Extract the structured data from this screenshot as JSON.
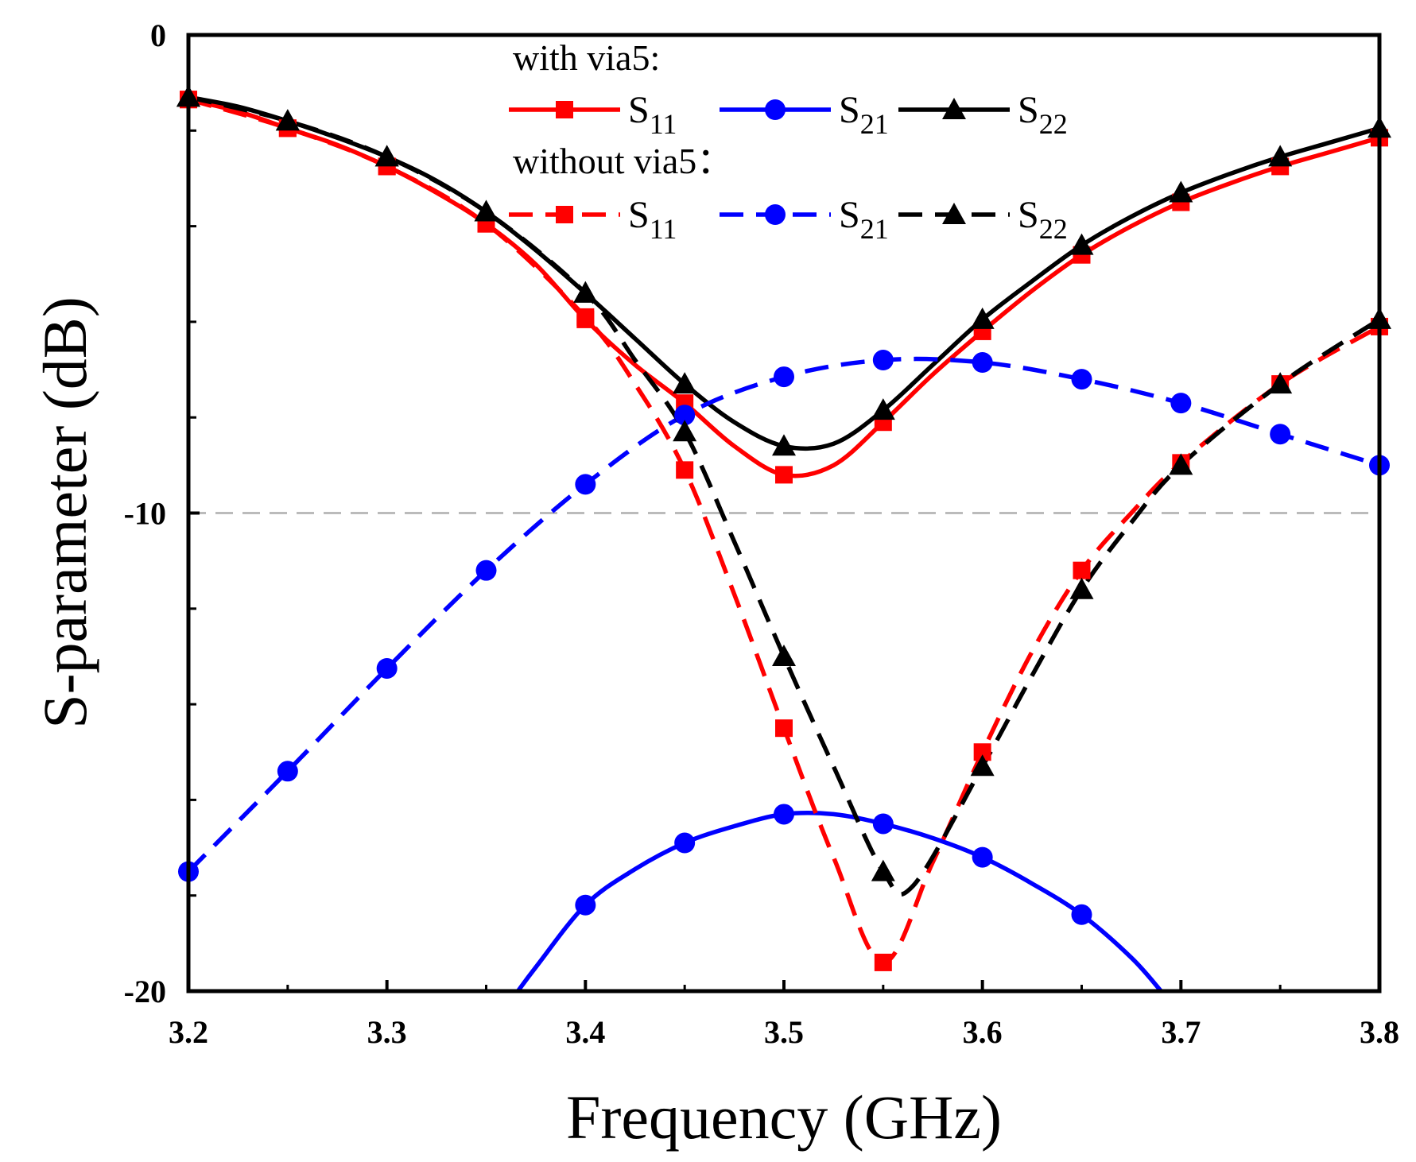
{
  "chart_data": {
    "type": "line",
    "title": "",
    "xlabel": "Frequency (GHz)",
    "ylabel": "S-parameter (dB)",
    "xlim": [
      3.2,
      3.8
    ],
    "ylim": [
      -20,
      0
    ],
    "x_ticks": [
      3.2,
      3.3,
      3.4,
      3.5,
      3.6,
      3.7,
      3.8
    ],
    "x_tick_labels": [
      "3.2",
      "3.3",
      "3.4",
      "3.5",
      "3.6",
      "3.7",
      "3.8"
    ],
    "y_tick_labels_shown": [
      {
        "value": 0,
        "label": "0"
      },
      {
        "value": -10,
        "label": "-10"
      },
      {
        "value": -20,
        "label": "-20"
      }
    ],
    "y_minor_ticks": [
      -2,
      -4,
      -6,
      -8,
      -12,
      -14,
      -16,
      -18
    ],
    "reference_line": {
      "y": -10,
      "color": "#bbbbbb",
      "style": "dashed"
    },
    "legend_position": "top-right",
    "legend_groups": [
      {
        "heading": "with via5:",
        "style": "solid",
        "entries": [
          {
            "series": "with_S11",
            "base": "S",
            "sub": "11"
          },
          {
            "series": "with_S21",
            "base": "S",
            "sub": "21"
          },
          {
            "series": "with_S22",
            "base": "S",
            "sub": "22"
          }
        ]
      },
      {
        "heading": "without via5：",
        "style": "dashed",
        "entries": [
          {
            "series": "without_S11",
            "base": "S",
            "sub": "11"
          },
          {
            "series": "without_S21",
            "base": "S",
            "sub": "21"
          },
          {
            "series": "without_S22",
            "base": "S",
            "sub": "22"
          }
        ]
      }
    ],
    "series": [
      {
        "id": "with_S11",
        "name": "with via5 S11",
        "color": "#ff0000",
        "marker": "square",
        "dashed": false,
        "x": [
          3.2,
          3.25,
          3.3,
          3.35,
          3.4,
          3.45,
          3.5,
          3.55,
          3.6,
          3.65,
          3.7,
          3.75,
          3.8
        ],
        "y": [
          -1.35,
          -1.95,
          -2.75,
          -3.95,
          -5.95,
          -7.7,
          -9.2,
          -8.1,
          -6.2,
          -4.6,
          -3.5,
          -2.75,
          -2.15
        ],
        "curve_x": [
          3.2,
          3.225,
          3.25,
          3.275,
          3.3,
          3.325,
          3.35,
          3.375,
          3.4,
          3.425,
          3.45,
          3.475,
          3.5,
          3.525,
          3.55,
          3.575,
          3.6,
          3.625,
          3.65,
          3.675,
          3.7,
          3.725,
          3.75,
          3.775,
          3.8
        ],
        "curve_y": [
          -1.35,
          -1.6,
          -1.95,
          -2.3,
          -2.75,
          -3.3,
          -3.95,
          -4.8,
          -5.95,
          -6.9,
          -7.7,
          -8.6,
          -9.2,
          -9.0,
          -8.1,
          -7.1,
          -6.2,
          -5.35,
          -4.6,
          -4.0,
          -3.5,
          -3.1,
          -2.75,
          -2.45,
          -2.15
        ],
        "marker_indices": [
          0,
          1,
          2,
          3,
          4,
          5,
          6,
          7,
          8,
          9,
          10,
          11,
          12
        ]
      },
      {
        "id": "with_S21",
        "name": "with via5 S21",
        "color": "#0000ff",
        "marker": "circle",
        "dashed": false,
        "x": [
          3.4,
          3.45,
          3.5,
          3.55,
          3.6,
          3.65
        ],
        "y": [
          -18.2,
          -16.9,
          -16.3,
          -16.5,
          -17.2,
          -18.4
        ],
        "curve_x": [
          3.366,
          3.375,
          3.4,
          3.425,
          3.45,
          3.475,
          3.5,
          3.525,
          3.55,
          3.575,
          3.6,
          3.625,
          3.65,
          3.675,
          3.69
        ],
        "curve_y": [
          -20.0,
          -19.5,
          -18.2,
          -17.45,
          -16.9,
          -16.55,
          -16.3,
          -16.3,
          -16.5,
          -16.8,
          -17.2,
          -17.75,
          -18.4,
          -19.3,
          -20.0
        ],
        "marker_indices": [
          2,
          4,
          6,
          8,
          10,
          12
        ]
      },
      {
        "id": "with_S22",
        "name": "with via5 S22",
        "color": "#000000",
        "marker": "triangle",
        "dashed": false,
        "x": [
          3.2,
          3.25,
          3.3,
          3.35,
          3.4,
          3.45,
          3.5,
          3.55,
          3.6,
          3.65,
          3.7,
          3.75,
          3.8
        ],
        "y": [
          -1.3,
          -1.8,
          -2.55,
          -3.7,
          -5.4,
          -7.3,
          -8.6,
          -7.85,
          -5.95,
          -4.4,
          -3.3,
          -2.55,
          -1.95
        ],
        "curve_x": [
          3.2,
          3.225,
          3.25,
          3.275,
          3.3,
          3.325,
          3.35,
          3.375,
          3.4,
          3.425,
          3.45,
          3.475,
          3.5,
          3.525,
          3.55,
          3.575,
          3.6,
          3.625,
          3.65,
          3.675,
          3.7,
          3.725,
          3.75,
          3.775,
          3.8
        ],
        "curve_y": [
          -1.3,
          -1.5,
          -1.8,
          -2.15,
          -2.55,
          -3.05,
          -3.7,
          -4.5,
          -5.4,
          -6.35,
          -7.3,
          -8.1,
          -8.6,
          -8.55,
          -7.85,
          -6.9,
          -5.95,
          -5.15,
          -4.4,
          -3.8,
          -3.3,
          -2.9,
          -2.55,
          -2.25,
          -1.95
        ],
        "marker_indices": [
          0,
          1,
          2,
          3,
          4,
          5,
          6,
          7,
          8,
          9,
          10,
          11,
          12
        ]
      },
      {
        "id": "without_S11",
        "name": "without via5 S11",
        "color": "#ff0000",
        "marker": "square",
        "dashed": true,
        "x": [
          3.2,
          3.25,
          3.3,
          3.35,
          3.4,
          3.45,
          3.5,
          3.55,
          3.6,
          3.65,
          3.7,
          3.75,
          3.8
        ],
        "y": [
          -1.35,
          -1.95,
          -2.75,
          -3.95,
          -5.9,
          -9.1,
          -14.5,
          -19.4,
          -15.0,
          -11.2,
          -8.95,
          -7.3,
          -6.1
        ],
        "curve_x": [
          3.2,
          3.25,
          3.3,
          3.35,
          3.4,
          3.425,
          3.45,
          3.475,
          3.5,
          3.525,
          3.55,
          3.575,
          3.6,
          3.625,
          3.65,
          3.675,
          3.7,
          3.75,
          3.8
        ],
        "curve_y": [
          -1.35,
          -1.95,
          -2.75,
          -3.95,
          -5.9,
          -7.3,
          -9.1,
          -11.7,
          -14.5,
          -17.2,
          -19.4,
          -17.3,
          -15.0,
          -12.9,
          -11.2,
          -10.0,
          -8.95,
          -7.3,
          -6.1
        ],
        "marker_indices": [
          0,
          1,
          2,
          3,
          4,
          6,
          8,
          10,
          12,
          14,
          16,
          17,
          18
        ]
      },
      {
        "id": "without_S21",
        "name": "without via5 S21",
        "color": "#0000ff",
        "marker": "circle",
        "dashed": true,
        "x": [
          3.2,
          3.25,
          3.3,
          3.35,
          3.4,
          3.45,
          3.5,
          3.55,
          3.6,
          3.65,
          3.7,
          3.75,
          3.8
        ],
        "y": [
          -17.5,
          -15.4,
          -13.25,
          -11.2,
          -9.4,
          -7.95,
          -7.15,
          -6.8,
          -6.85,
          -7.2,
          -7.7,
          -8.35,
          -9.0
        ],
        "curve_x": [
          3.2,
          3.25,
          3.3,
          3.35,
          3.4,
          3.45,
          3.5,
          3.55,
          3.6,
          3.65,
          3.7,
          3.75,
          3.8
        ],
        "curve_y": [
          -17.5,
          -15.4,
          -13.25,
          -11.2,
          -9.4,
          -7.95,
          -7.15,
          -6.8,
          -6.85,
          -7.2,
          -7.7,
          -8.35,
          -9.0
        ],
        "marker_indices": [
          0,
          1,
          2,
          3,
          4,
          5,
          6,
          7,
          8,
          9,
          10,
          11,
          12
        ]
      },
      {
        "id": "without_S22",
        "name": "without via5 S22",
        "color": "#000000",
        "marker": "triangle",
        "dashed": true,
        "x": [
          3.2,
          3.25,
          3.3,
          3.35,
          3.4,
          3.45,
          3.5,
          3.55,
          3.6,
          3.65,
          3.7,
          3.75,
          3.8
        ],
        "y": [
          -1.3,
          -1.8,
          -2.55,
          -3.7,
          -5.4,
          -8.3,
          -13.0,
          -17.5,
          -15.3,
          -11.6,
          -9.0,
          -7.3,
          -5.95
        ],
        "curve_x": [
          3.2,
          3.25,
          3.3,
          3.35,
          3.4,
          3.425,
          3.45,
          3.475,
          3.5,
          3.525,
          3.55,
          3.565,
          3.6,
          3.625,
          3.65,
          3.675,
          3.7,
          3.75,
          3.8
        ],
        "curve_y": [
          -1.3,
          -1.8,
          -2.55,
          -3.7,
          -5.4,
          -6.8,
          -8.3,
          -10.6,
          -13.0,
          -15.3,
          -17.5,
          -17.8,
          -15.3,
          -13.4,
          -11.6,
          -10.2,
          -9.0,
          -7.3,
          -5.95
        ],
        "marker_indices": [
          0,
          1,
          2,
          3,
          4,
          6,
          8,
          10,
          12,
          14,
          16,
          17,
          18
        ]
      }
    ]
  }
}
